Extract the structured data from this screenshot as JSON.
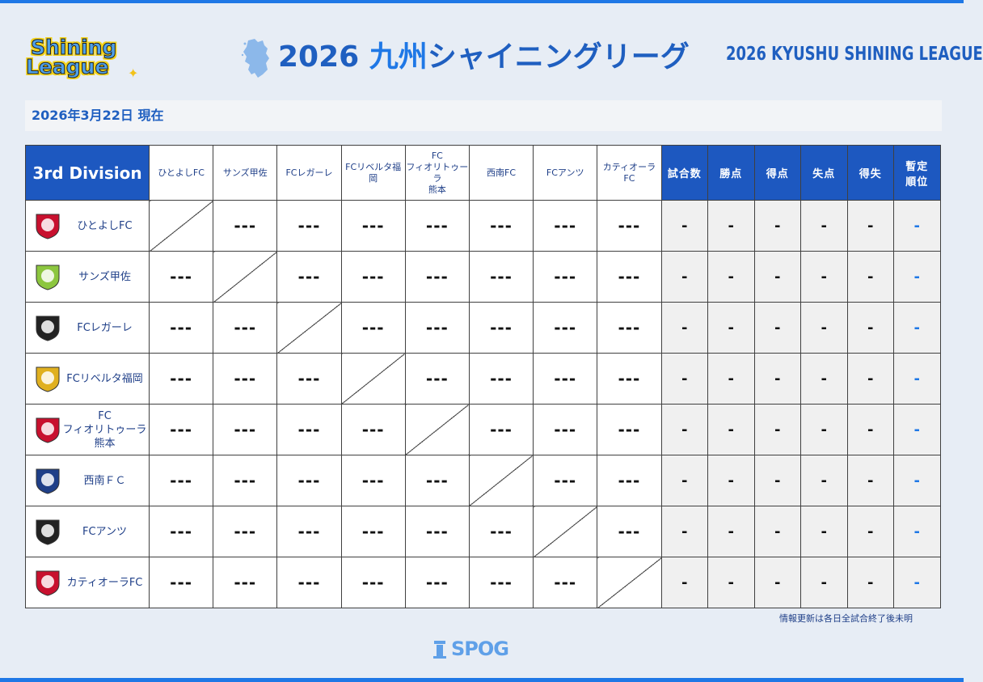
{
  "header": {
    "logo_line1": "Shining",
    "logo_line2": "League",
    "title_year": "2026",
    "title_region": "九州",
    "title_name": "シャイニングリーグ",
    "title_en": "2026 KYUSHU SHINING LEAGUE"
  },
  "date_bar": {
    "text": "2026年3月22日 現在"
  },
  "table": {
    "division": "3rd Division",
    "opponent_headers": [
      {
        "lines": [
          "ひとよしFC"
        ]
      },
      {
        "lines": [
          "サンズ甲佐"
        ]
      },
      {
        "lines": [
          "FCレガーレ"
        ]
      },
      {
        "lines": [
          "FCリベルタ福岡"
        ]
      },
      {
        "lines": [
          "FC",
          "フィオリトゥーラ",
          "熊本"
        ]
      },
      {
        "lines": [
          "西南FC"
        ]
      },
      {
        "lines": [
          "FCアンツ"
        ]
      },
      {
        "lines": [
          "カティオーラFC"
        ]
      }
    ],
    "stat_headers": [
      {
        "lines": [
          "試合数"
        ]
      },
      {
        "lines": [
          "勝点"
        ]
      },
      {
        "lines": [
          "得点"
        ]
      },
      {
        "lines": [
          "失点"
        ]
      },
      {
        "lines": [
          "得失"
        ]
      },
      {
        "lines": [
          "暫定",
          "順位"
        ]
      }
    ],
    "teams": [
      {
        "lines": [
          "ひとよしFC"
        ],
        "crest_color": "#c8102e",
        "crest_text": "NFC"
      },
      {
        "lines": [
          "サンズ甲佐"
        ],
        "crest_color": "#8cc63f",
        "crest_text": "Son's"
      },
      {
        "lines": [
          "FCレガーレ"
        ],
        "crest_color": "#222222",
        "crest_text": "FC"
      },
      {
        "lines": [
          "FCリベルタ福岡"
        ],
        "crest_color": "#e0b020",
        "crest_text": ""
      },
      {
        "lines": [
          "FC",
          "フィオリトゥーラ",
          "熊本"
        ],
        "crest_color": "#c8102e",
        "crest_text": "F"
      },
      {
        "lines": [
          "西南ＦＣ"
        ],
        "crest_color": "#1f3f88",
        "crest_text": ""
      },
      {
        "lines": [
          "FCアンツ"
        ],
        "crest_color": "#222222",
        "crest_text": ""
      },
      {
        "lines": [
          "カティオーラFC"
        ],
        "crest_color": "#c8102e",
        "crest_text": "FC"
      }
    ],
    "result_placeholder": "---",
    "stat_placeholder": "-"
  },
  "footer": {
    "note": "情報更新は各日全試合終了後未明",
    "sponsor": "SPOG"
  },
  "colors": {
    "accent": "#1d58c0",
    "accent_light": "#1f78e6",
    "background": "#e7edf5"
  }
}
